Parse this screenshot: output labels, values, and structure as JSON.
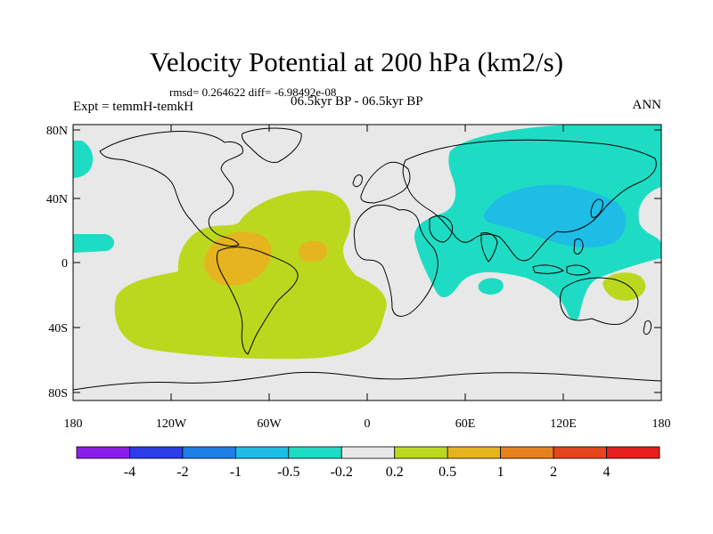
{
  "title": "Velocity Potential at 200 hPa (km2/s)",
  "stats": "rmsd= 0.264622 diff= -6.98492e-08",
  "experiment": "Expt = temmH-temkH",
  "period": "06.5kyr BP - 06.5kyr BP",
  "season": "ANN",
  "lat_labels": [
    "80N",
    "40N",
    "0",
    "40S",
    "80S"
  ],
  "lon_labels": [
    "180",
    "120W",
    "60W",
    "0",
    "60E",
    "120E",
    "180"
  ],
  "colorbar": {
    "labels": [
      "-4",
      "-2",
      "-1",
      "-0.5",
      "-0.2",
      "0.2",
      "0.5",
      "1",
      "2",
      "4"
    ],
    "colors": [
      "#8a1ee6",
      "#2b3ce8",
      "#1e7fe6",
      "#1ebde6",
      "#1edcc4",
      "#e8e8e8",
      "#bcd81e",
      "#e6b41e",
      "#e6821e",
      "#e6461e",
      "#e61e1e"
    ]
  },
  "map_colors": {
    "background": "#e8e8e8",
    "positive_02_05": "#bcd81e",
    "positive_05_1": "#e6b41e",
    "negative_02_05": "#1edcc4",
    "negative_05_1": "#1ebde6",
    "coastline": "#000000"
  }
}
